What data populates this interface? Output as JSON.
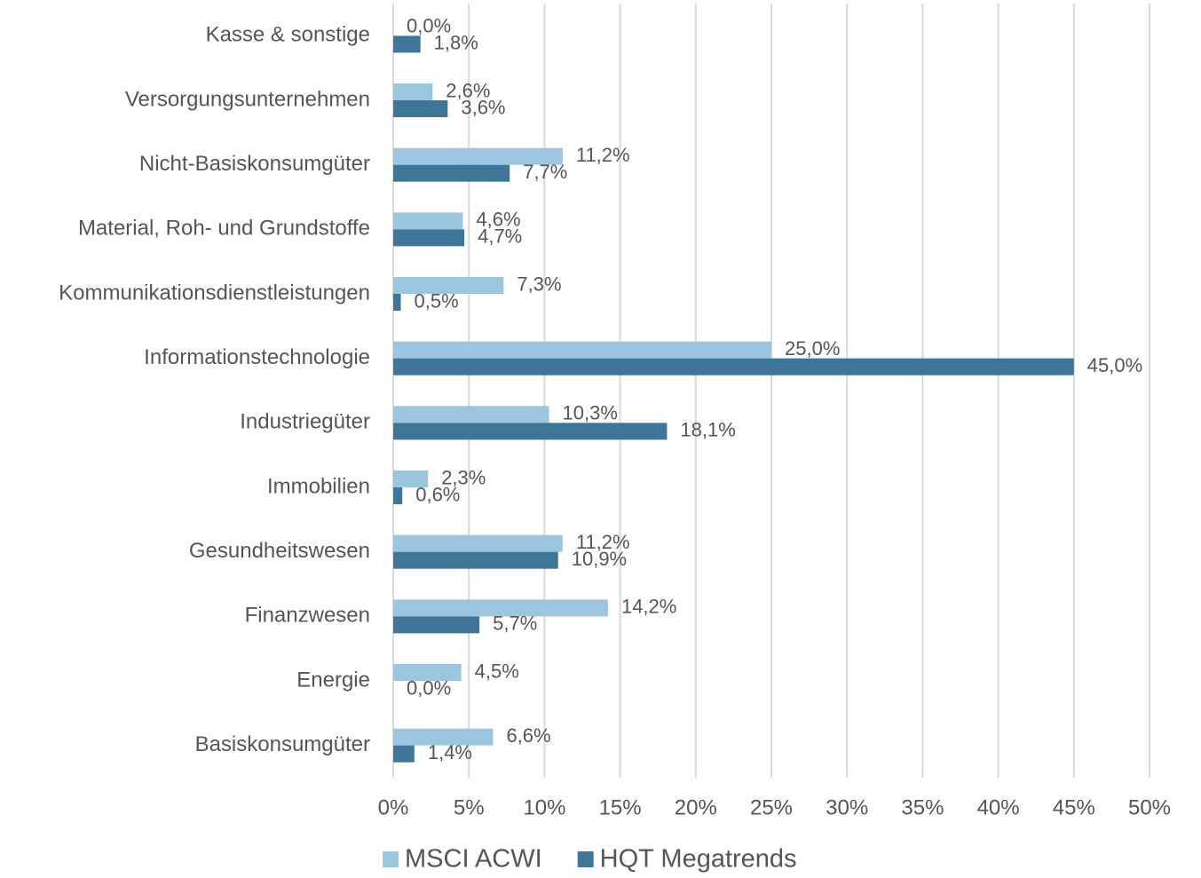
{
  "chart_data": {
    "type": "barh",
    "categories": [
      "Kasse & sonstige",
      "Versorgungsunternehmen",
      "Nicht-Basiskonsumgüter",
      "Material, Roh- und Grundstoffe",
      "Kommunikationsdienstleistungen",
      "Informationstechnologie",
      "Industriegüter",
      "Immobilien",
      "Gesundheitswesen",
      "Finanzwesen",
      "Energie",
      "Basiskonsumgüter"
    ],
    "series": [
      {
        "name": "MSCI ACWI",
        "color": "#9cc6df",
        "values": [
          0.0,
          2.6,
          11.2,
          4.6,
          7.3,
          25.0,
          10.3,
          2.3,
          11.2,
          14.2,
          4.5,
          6.6
        ],
        "value_labels": [
          "0,0%",
          "2,6%",
          "11,2%",
          "4,6%",
          "7,3%",
          "25,0%",
          "10,3%",
          "2,3%",
          "11,2%",
          "14,2%",
          "4,5%",
          "6,6%"
        ]
      },
      {
        "name": "HQT Megatrends",
        "color": "#3e7699",
        "values": [
          1.8,
          3.6,
          7.7,
          4.7,
          0.5,
          45.0,
          18.1,
          0.6,
          10.9,
          5.7,
          0.0,
          1.4
        ],
        "value_labels": [
          "1,8%",
          "3,6%",
          "7,7%",
          "4,7%",
          "0,5%",
          "45,0%",
          "18,1%",
          "0,6%",
          "10,9%",
          "5,7%",
          "0,0%",
          "1,4%"
        ]
      }
    ],
    "xlim": [
      0,
      50
    ],
    "xticks": [
      {
        "value": 0,
        "label": "0%"
      },
      {
        "value": 5,
        "label": "5%"
      },
      {
        "value": 10,
        "label": "10%"
      },
      {
        "value": 15,
        "label": "15%"
      },
      {
        "value": 20,
        "label": "20%"
      },
      {
        "value": 25,
        "label": "25%"
      },
      {
        "value": 30,
        "label": "30%"
      },
      {
        "value": 35,
        "label": "35%"
      },
      {
        "value": 40,
        "label": "40%"
      },
      {
        "value": 45,
        "label": "45%"
      },
      {
        "value": 50,
        "label": "50%"
      }
    ],
    "grid": true,
    "legend": "bottom"
  }
}
